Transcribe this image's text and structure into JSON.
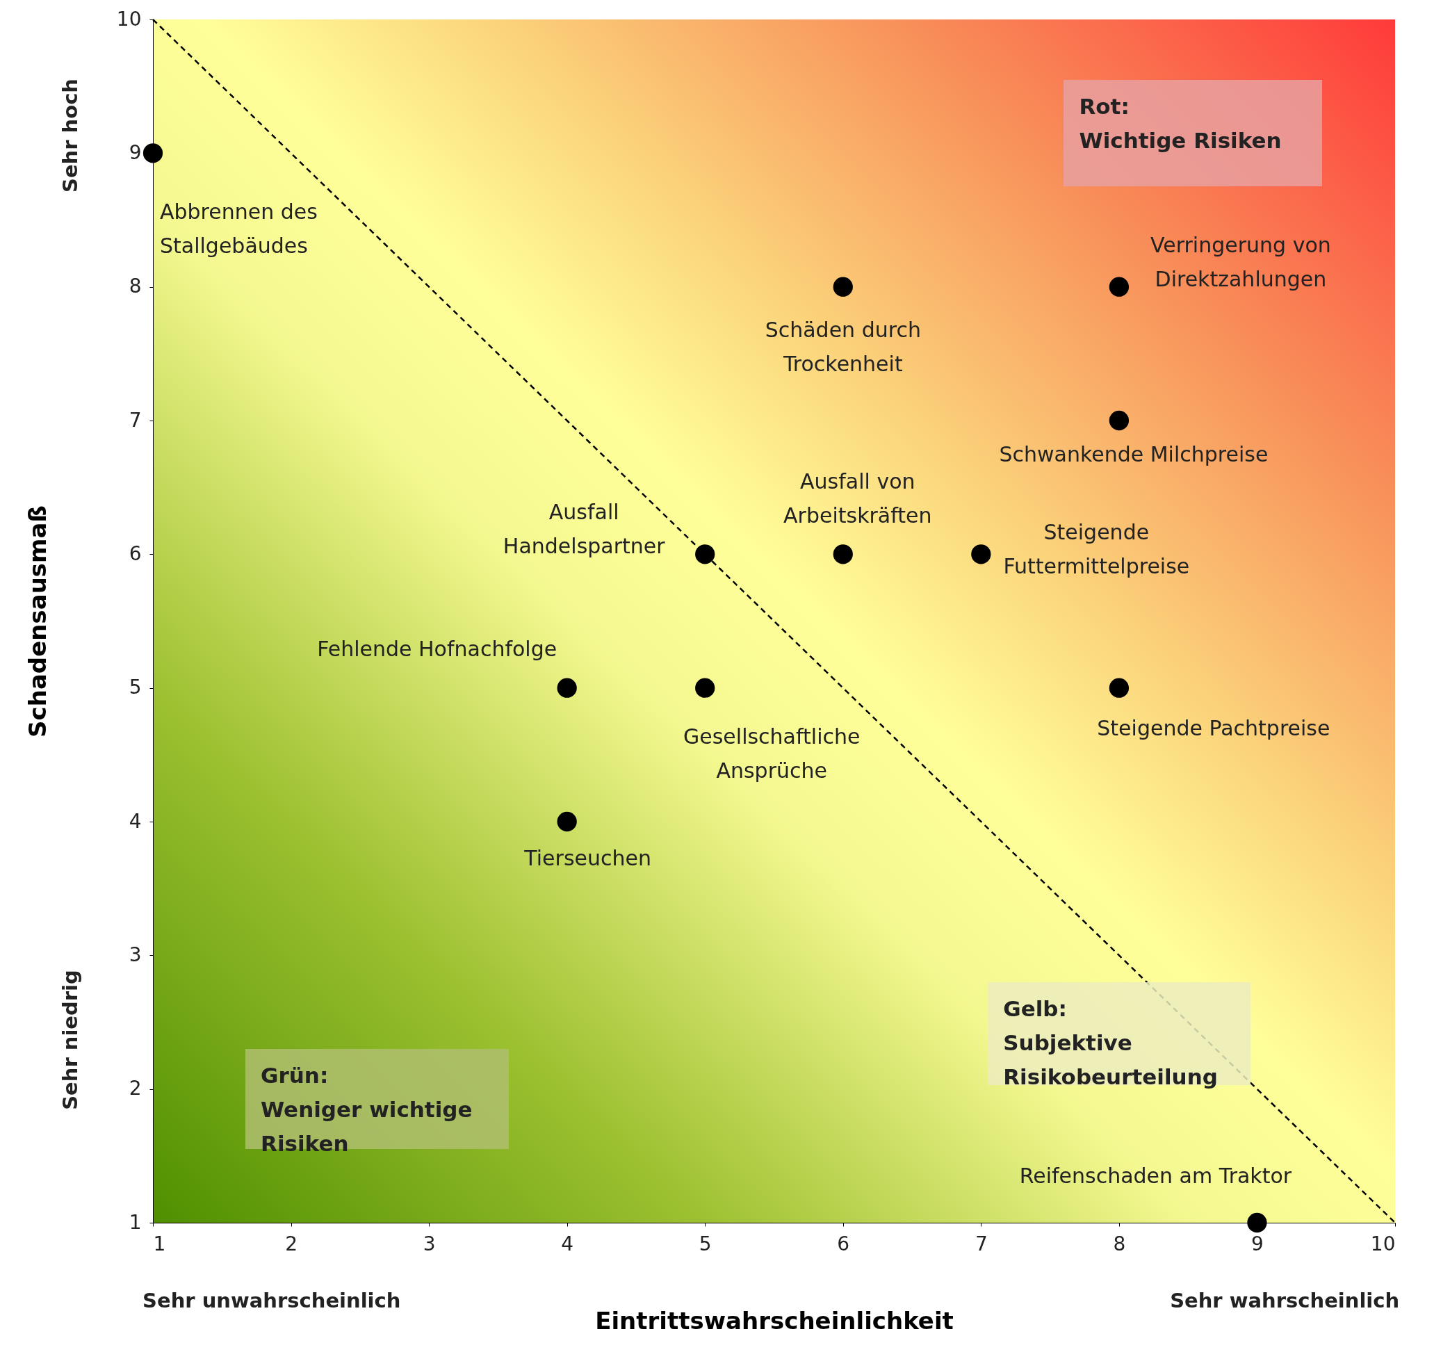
{
  "chart_data": {
    "type": "scatter",
    "xlabel": "Eintrittswahrscheinlichkeit",
    "ylabel": "Schadensausmaß",
    "xlim": [
      1,
      10
    ],
    "ylim": [
      1,
      10
    ],
    "xticks": [
      1,
      2,
      3,
      4,
      5,
      6,
      7,
      8,
      9,
      10
    ],
    "yticks": [
      1,
      2,
      3,
      4,
      5,
      6,
      7,
      8,
      9,
      10
    ],
    "grid": false,
    "marker": "circle",
    "series": [
      {
        "type": "line",
        "color": "#000000",
        "line_style": "dashed",
        "marker": "none",
        "x": [
          1,
          10
        ],
        "values": [
          10,
          1
        ]
      },
      {
        "color": "#000000",
        "x": [
          1,
          6,
          8,
          8,
          5,
          6,
          7,
          4,
          5,
          8,
          4,
          9
        ],
        "values": [
          9,
          8,
          8,
          7,
          6,
          6,
          6,
          5,
          5,
          5,
          4,
          1
        ]
      }
    ],
    "annotations": [
      {
        "text": "Abbrennen des\nStallgebäudes",
        "x": 1,
        "y": 9
      },
      {
        "text": "Schäden durch\nTrockenheit",
        "x": 6,
        "y": 8
      },
      {
        "text": "Verringerung von\nDirektzahlungen",
        "x": 8,
        "y": 8
      },
      {
        "text": "Schwankende Milchpreise",
        "x": 8,
        "y": 7
      },
      {
        "text": "Ausfall\nHandelspartner",
        "x": 5,
        "y": 6
      },
      {
        "text": "Ausfall von\nArbeitskräften",
        "x": 6,
        "y": 6
      },
      {
        "text": "Steigende\nFuttermittelpreise",
        "x": 7,
        "y": 6
      },
      {
        "text": "Fehlende Hofnachfolge",
        "x": 4,
        "y": 5
      },
      {
        "text": "Gesellschaftliche\nAnsprüche",
        "x": 5,
        "y": 5
      },
      {
        "text": "Steigende Pachtpreise",
        "x": 8,
        "y": 5
      },
      {
        "text": "Tierseuchen",
        "x": 4,
        "y": 4
      },
      {
        "text": "Reifenschaden am Traktor",
        "x": 9,
        "y": 1
      },
      "Rot:\nWichtige Risiken",
      "Gelb:\nSubjektive\nRisikobeurteilung",
      "Grün:\nWeniger wichtige\nRisiken",
      "Sehr hoch",
      "Sehr niedrig",
      "Sehr unwahrscheinlich",
      "Sehr wahrscheinlich"
    ]
  }
}
